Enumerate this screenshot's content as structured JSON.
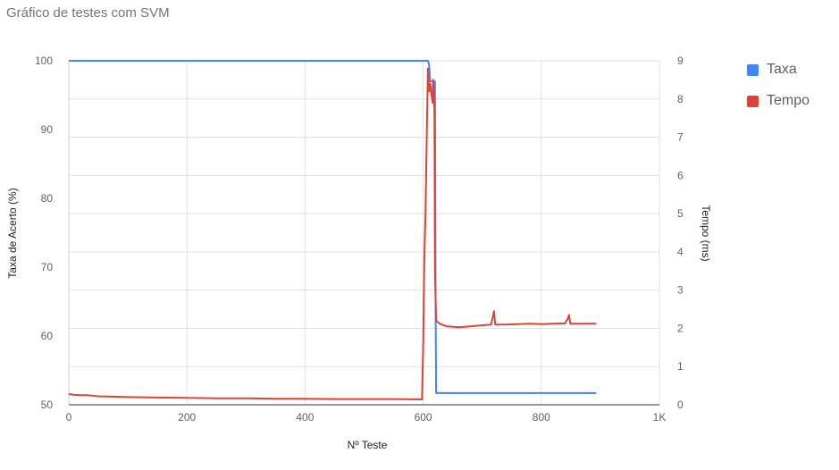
{
  "chart_data": {
    "type": "line",
    "title": "Gráfico de testes com SVM",
    "xlabel": "Nº Teste",
    "ylabel_left": "Taxa de Acerto (%)",
    "ylabel_right": "Tempo (ms)",
    "xlim": [
      0,
      1000
    ],
    "ylim_left": [
      50,
      100
    ],
    "ylim_right": [
      0,
      9
    ],
    "x_ticks": [
      {
        "value": 0,
        "label": "0"
      },
      {
        "value": 200,
        "label": "200"
      },
      {
        "value": 400,
        "label": "400"
      },
      {
        "value": 600,
        "label": "600"
      },
      {
        "value": 800,
        "label": "800"
      },
      {
        "value": 1000,
        "label": "1K"
      }
    ],
    "y_left_ticks": [
      "50",
      "60",
      "70",
      "80",
      "90",
      "100"
    ],
    "y_right_ticks": [
      "0",
      "1",
      "2",
      "3",
      "4",
      "5",
      "6",
      "7",
      "8",
      "9"
    ],
    "grid": true,
    "legend_position": "right",
    "series": [
      {
        "name": "Taxa",
        "axis": "left",
        "color": "#4285f4",
        "points": [
          [
            0,
            100
          ],
          [
            608,
            100
          ],
          [
            610,
            99.5
          ],
          [
            612,
            97
          ],
          [
            620,
            97
          ],
          [
            621,
            65
          ],
          [
            622,
            51.7
          ],
          [
            893,
            51.7
          ]
        ]
      },
      {
        "name": "Tempo",
        "axis": "right",
        "color": "#db4437",
        "points": [
          [
            0,
            0.28
          ],
          [
            10,
            0.26
          ],
          [
            20,
            0.25
          ],
          [
            30,
            0.25
          ],
          [
            40,
            0.24
          ],
          [
            50,
            0.22
          ],
          [
            60,
            0.22
          ],
          [
            80,
            0.21
          ],
          [
            100,
            0.2
          ],
          [
            150,
            0.19
          ],
          [
            200,
            0.18
          ],
          [
            250,
            0.17
          ],
          [
            300,
            0.17
          ],
          [
            350,
            0.16
          ],
          [
            400,
            0.16
          ],
          [
            450,
            0.15
          ],
          [
            500,
            0.15
          ],
          [
            550,
            0.15
          ],
          [
            598,
            0.14
          ],
          [
            600,
            1.5
          ],
          [
            602,
            3.8
          ],
          [
            604,
            5.0
          ],
          [
            606,
            7.0
          ],
          [
            608,
            8.8
          ],
          [
            610,
            8.2
          ],
          [
            612,
            8.4
          ],
          [
            614,
            8.1
          ],
          [
            616,
            7.9
          ],
          [
            617,
            8.5
          ],
          [
            619,
            7.7
          ],
          [
            620,
            3.5
          ],
          [
            622,
            2.2
          ],
          [
            628,
            2.12
          ],
          [
            640,
            2.05
          ],
          [
            660,
            2.03
          ],
          [
            680,
            2.05
          ],
          [
            700,
            2.08
          ],
          [
            715,
            2.1
          ],
          [
            718,
            2.3
          ],
          [
            720,
            2.45
          ],
          [
            722,
            2.1
          ],
          [
            740,
            2.1
          ],
          [
            760,
            2.11
          ],
          [
            780,
            2.12
          ],
          [
            800,
            2.11
          ],
          [
            820,
            2.12
          ],
          [
            840,
            2.13
          ],
          [
            845,
            2.25
          ],
          [
            847,
            2.35
          ],
          [
            849,
            2.12
          ],
          [
            860,
            2.12
          ],
          [
            880,
            2.12
          ],
          [
            893,
            2.12
          ]
        ]
      }
    ]
  }
}
